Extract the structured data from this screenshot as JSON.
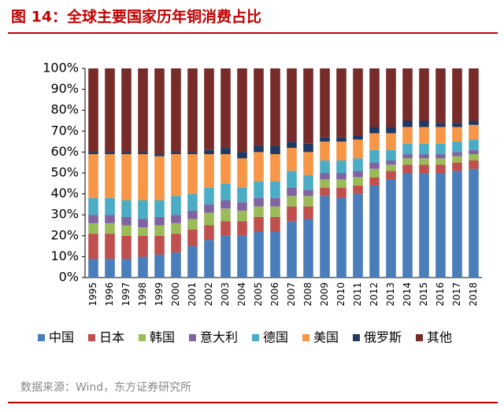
{
  "chart_data": {
    "type": "stacked_bar",
    "title": "图 14：全球主要国家历年铜消费占比",
    "source": "数据来源：Wind，东方证券研究所",
    "categories": [
      "1995",
      "1996",
      "1997",
      "1998",
      "1999",
      "2000",
      "2001",
      "2002",
      "2003",
      "2004",
      "2005",
      "2006",
      "2007",
      "2008",
      "2009",
      "2010",
      "2011",
      "2012",
      "2013",
      "2014",
      "2015",
      "2016",
      "2017",
      "2018"
    ],
    "series": [
      {
        "name": "中国",
        "color": "#4a7ebb",
        "values": [
          9,
          9,
          9,
          10,
          11,
          12,
          15,
          18,
          20,
          20,
          22,
          22,
          27,
          28,
          39,
          38,
          40,
          44,
          47,
          50,
          50,
          50,
          51,
          52
        ]
      },
      {
        "name": "日本",
        "color": "#c0504d",
        "values": [
          12,
          12,
          11,
          10,
          9,
          9,
          8,
          7,
          7,
          7,
          7,
          7,
          7,
          6,
          4,
          5,
          4,
          4,
          4,
          4,
          4,
          4,
          4,
          4
        ]
      },
      {
        "name": "韩国",
        "color": "#9bbb59",
        "values": [
          5,
          5,
          5,
          4,
          5,
          5,
          5,
          6,
          6,
          5,
          5,
          5,
          5,
          5,
          4,
          4,
          4,
          4,
          3,
          3,
          3,
          3,
          3,
          3
        ]
      },
      {
        "name": "意大利",
        "color": "#8064a2",
        "values": [
          4,
          4,
          4,
          4,
          4,
          4,
          4,
          4,
          4,
          4,
          4,
          4,
          4,
          3,
          3,
          3,
          3,
          3,
          2,
          2,
          2,
          2,
          2,
          2
        ]
      },
      {
        "name": "德国",
        "color": "#4bacc6",
        "values": [
          8,
          8,
          8,
          9,
          8,
          9,
          8,
          8,
          8,
          7,
          8,
          8,
          8,
          7,
          6,
          6,
          6,
          6,
          5,
          5,
          5,
          5,
          5,
          5
        ]
      },
      {
        "name": "美国",
        "color": "#f79646",
        "values": [
          21,
          21,
          22,
          22,
          21,
          20,
          19,
          16,
          14,
          14,
          14,
          13,
          11,
          11,
          9,
          9,
          9,
          8,
          8,
          8,
          8,
          8,
          7,
          7
        ]
      },
      {
        "name": "俄罗斯",
        "color": "#1f3864",
        "values": [
          1,
          1,
          1,
          1,
          1,
          1,
          1,
          2,
          3,
          3,
          3,
          4,
          3,
          4,
          2,
          2,
          2,
          3,
          3,
          3,
          3,
          2,
          2,
          2
        ]
      },
      {
        "name": "其他",
        "color": "#772c2a",
        "values": [
          40,
          40,
          40,
          40,
          41,
          40,
          40,
          39,
          38,
          40,
          37,
          37,
          35,
          36,
          33,
          33,
          32,
          28,
          28,
          25,
          25,
          26,
          26,
          25
        ]
      }
    ],
    "ylim": [
      0,
      100
    ],
    "yticks": [
      {
        "value": 0,
        "label": "0%"
      },
      {
        "value": 10,
        "label": "10%"
      },
      {
        "value": 20,
        "label": "20%"
      },
      {
        "value": 30,
        "label": "30%"
      },
      {
        "value": 40,
        "label": "40%"
      },
      {
        "value": 50,
        "label": "50%"
      },
      {
        "value": 60,
        "label": "60%"
      },
      {
        "value": 70,
        "label": "70%"
      },
      {
        "value": 80,
        "label": "80%"
      },
      {
        "value": 90,
        "label": "90%"
      },
      {
        "value": 100,
        "label": "100%"
      }
    ]
  }
}
